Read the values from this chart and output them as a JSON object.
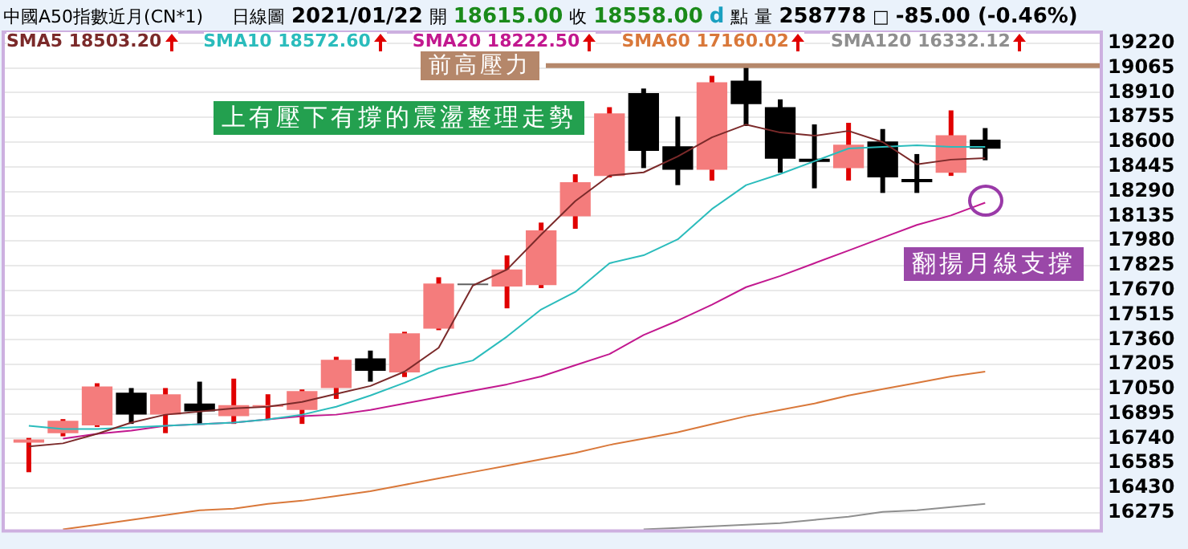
{
  "chart_data": {
    "type": "candlestick",
    "title": "中國A50指數近月(CN*1)",
    "subtitle": "日線圖",
    "annotations": [
      "2021/01/22",
      "開",
      "18615.00",
      "收",
      "18558.00",
      "d",
      "點",
      "量",
      "258778",
      "□",
      "-85.00 (-0.46%)",
      "上有壓下有撐的震盪整理走勢",
      "翻揚月線支撐"
    ],
    "categories": [
      null,
      null,
      null,
      null,
      null,
      null,
      null,
      null,
      null,
      null,
      null,
      null,
      null,
      null,
      null,
      null,
      null,
      null,
      null,
      null,
      null,
      null,
      null,
      null,
      null,
      null,
      null,
      null,
      null
    ],
    "ohlc": [
      [
        16715,
        16744,
        16529,
        16735
      ],
      [
        16774,
        16862,
        16754,
        16852
      ],
      [
        16823,
        17087,
        16813,
        17067
      ],
      [
        17028,
        17057,
        16832,
        16891
      ],
      [
        16891,
        17057,
        16774,
        17018
      ],
      [
        16960,
        17097,
        16832,
        16911
      ],
      [
        16881,
        17116,
        16832,
        16950
      ],
      [
        16940,
        17018,
        16862,
        16950
      ],
      [
        16920,
        17048,
        16832,
        17038
      ],
      [
        17057,
        17253,
        16989,
        17234
      ],
      [
        17243,
        17292,
        17097,
        17165
      ],
      [
        17155,
        17410,
        17126,
        17400
      ],
      [
        17429,
        17752,
        17420,
        17713
      ],
      [
        17713,
        17713,
        17713,
        17713
      ],
      [
        17694,
        17889,
        17557,
        17801
      ],
      [
        17703,
        18095,
        17684,
        18046
      ],
      [
        18134,
        18398,
        18056,
        18349
      ],
      [
        18388,
        18819,
        18378,
        18780
      ],
      [
        18907,
        18936,
        18437,
        18545
      ],
      [
        18574,
        18760,
        18330,
        18427
      ],
      [
        18427,
        19015,
        18359,
        18975
      ],
      [
        18985,
        19083,
        18701,
        18838
      ],
      [
        18819,
        18868,
        18408,
        18496
      ],
      [
        18496,
        18711,
        18310,
        18476
      ],
      [
        18437,
        18721,
        18359,
        18584
      ],
      [
        18604,
        18682,
        18281,
        18378
      ],
      [
        18369,
        18525,
        18281,
        18349
      ],
      [
        18408,
        18799,
        18388,
        18643
      ],
      [
        18615,
        18688,
        18486,
        18558
      ]
    ],
    "colors": [
      "#f47c7c",
      "#f47c7c",
      "#f47c7c",
      "#000000",
      "#f47c7c",
      "#000000",
      "#f47c7c",
      "#f47c7c",
      "#f47c7c",
      "#f47c7c",
      "#000000",
      "#f47c7c",
      "#f47c7c",
      "#606060",
      "#f47c7c",
      "#f47c7c",
      "#f47c7c",
      "#f47c7c",
      "#000000",
      "#000000",
      "#f47c7c",
      "#000000",
      "#000000",
      "#000000",
      "#f47c7c",
      "#000000",
      "#000000",
      "#f47c7c",
      "#000000"
    ],
    "series": [
      {
        "type": "line",
        "name": "SMA5 18503.20",
        "color": "#7b2a2a",
        "values": [
          16690,
          16710,
          16770,
          16840,
          16890,
          16910,
          16930,
          16940,
          16970,
          17020,
          17070,
          17160,
          17310,
          17700,
          17800,
          18020,
          18230,
          18390,
          18410,
          18510,
          18630,
          18710,
          18660,
          18640,
          18670,
          18600,
          18460,
          18490,
          18500
        ]
      },
      {
        "type": "line",
        "name": "SMA10 18572.60",
        "color": "#2bbcbc",
        "values": [
          16820,
          16800,
          16800,
          16810,
          16820,
          16830,
          16840,
          16860,
          16890,
          16940,
          17010,
          17090,
          17180,
          17230,
          17380,
          17550,
          17660,
          17840,
          17890,
          17990,
          18180,
          18330,
          18400,
          18480,
          18560,
          18570,
          18580,
          18570,
          18570
        ]
      },
      {
        "type": "line",
        "name": "SMA20 18222.50",
        "color": "#c2188f",
        "values": [
          null,
          16740,
          16770,
          16790,
          16820,
          16830,
          16840,
          16860,
          16880,
          16890,
          16920,
          16960,
          17000,
          17040,
          17080,
          17130,
          17200,
          17270,
          17390,
          17480,
          17580,
          17690,
          17760,
          17840,
          17920,
          18000,
          18080,
          18140,
          18220
        ]
      },
      {
        "type": "line",
        "name": "SMA60 17160.02",
        "color": "#d9783a",
        "values": [
          null,
          16170,
          16200,
          16230,
          16260,
          16290,
          16300,
          16330,
          16350,
          16380,
          16410,
          16450,
          16490,
          16530,
          16570,
          16610,
          16650,
          16700,
          16740,
          16780,
          16830,
          16880,
          16920,
          16960,
          17010,
          17050,
          17090,
          17130,
          17160
        ]
      },
      {
        "type": "line",
        "name": "SMA120 16332.12",
        "color": "#8f8f8f",
        "values": [
          null,
          null,
          null,
          null,
          null,
          null,
          null,
          null,
          null,
          null,
          null,
          null,
          null,
          null,
          null,
          null,
          null,
          null,
          16170,
          16180,
          16190,
          16200,
          16210,
          16230,
          16250,
          16280,
          16290,
          16310,
          16330
        ]
      }
    ],
    "ref_lines": [
      {
        "axis": "y",
        "value": 19080,
        "label": "前高壓力",
        "color": "#b5876a"
      }
    ],
    "ylim": [
      16160,
      19290
    ],
    "yticks": [
      16275,
      16430,
      16585,
      16740,
      16895,
      17050,
      17205,
      17360,
      17515,
      17670,
      17825,
      17980,
      18135,
      18290,
      18445,
      18600,
      18755,
      18910,
      19065,
      19220
    ],
    "grid": "y",
    "legend": "top",
    "line_style": "solid",
    "marker": "none"
  }
}
